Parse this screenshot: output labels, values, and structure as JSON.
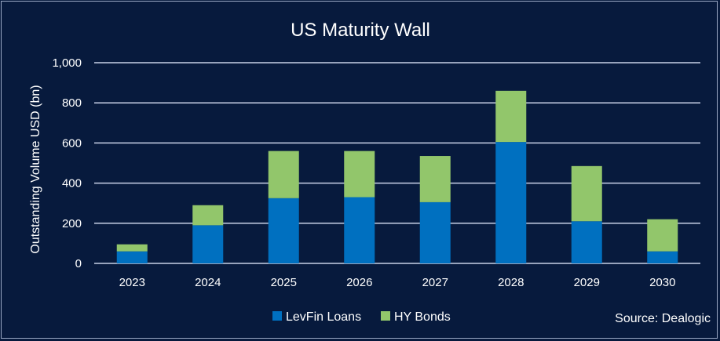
{
  "chart_data": {
    "type": "bar",
    "stacked": true,
    "title": "US Maturity Wall",
    "ylabel": "Outstanding Volume USD (bn)",
    "xlabel": "",
    "ylim": [
      0,
      1000
    ],
    "yticks": [
      0,
      200,
      400,
      600,
      800,
      1000
    ],
    "ytick_labels": [
      "0",
      "200",
      "400",
      "600",
      "800",
      "1,000"
    ],
    "grid": true,
    "legend": "bottom-center",
    "categories": [
      "2023",
      "2024",
      "2025",
      "2026",
      "2027",
      "2028",
      "2029",
      "2030"
    ],
    "series": [
      {
        "name": "LevFin Loans",
        "color": "#0070c0",
        "values": [
          60,
          190,
          325,
          330,
          305,
          605,
          210,
          60
        ]
      },
      {
        "name": "HY Bonds",
        "color": "#92c66b",
        "values": [
          35,
          100,
          235,
          230,
          230,
          255,
          275,
          160
        ]
      }
    ],
    "source": "Source: Dealogic"
  }
}
